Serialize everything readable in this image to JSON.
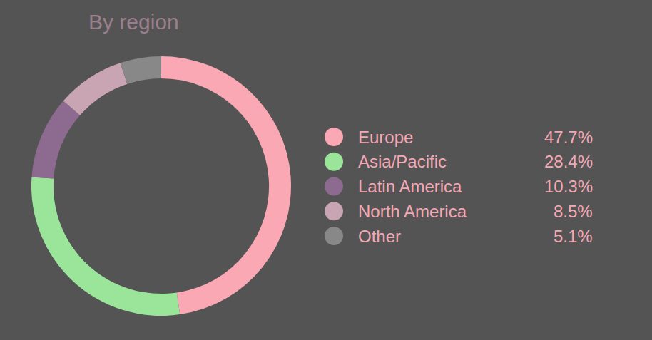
{
  "chart_data": {
    "type": "pie",
    "title": "By region",
    "categories": [
      "Europe",
      "Asia/Pacific",
      "Latin America",
      "North America",
      "Other"
    ],
    "values": [
      47.7,
      28.4,
      10.3,
      8.5,
      5.1
    ],
    "value_labels": [
      "47.7%",
      "28.4%",
      "10.3%",
      "8.5%",
      "5.1%"
    ],
    "colors": [
      "#f9a8b4",
      "#9be59a",
      "#8d6a8f",
      "#c9a4b2",
      "#888888"
    ],
    "legend": "right"
  }
}
